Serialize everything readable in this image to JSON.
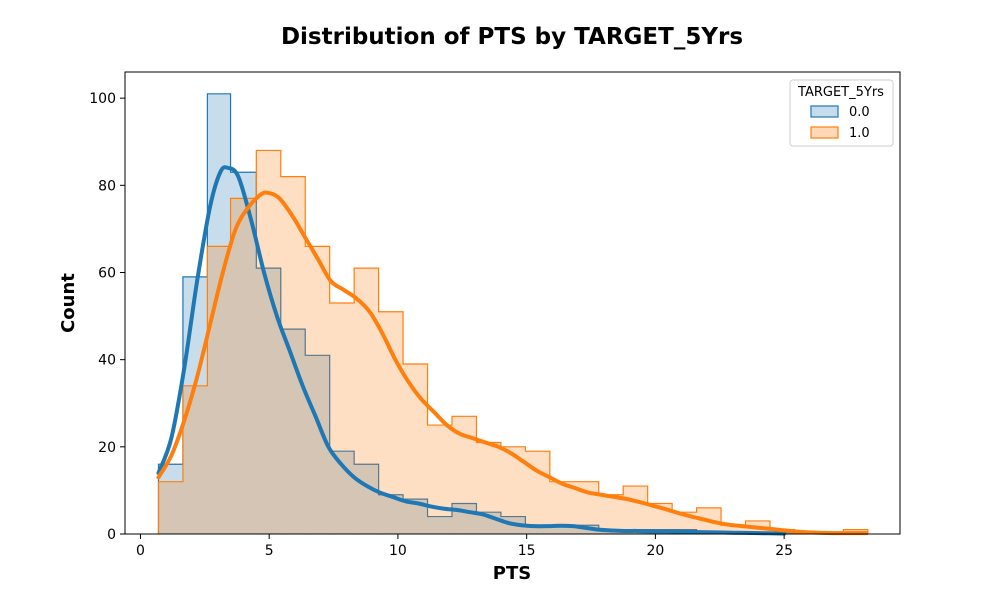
{
  "chart_data": {
    "type": "histogram",
    "title": "Distribution of PTS by TARGET_5Yrs",
    "xlabel": "PTS",
    "ylabel": "Count",
    "xlim": [
      -0.6,
      29.5
    ],
    "ylim": [
      0,
      106
    ],
    "xticks": [
      0,
      5,
      10,
      15,
      20,
      25
    ],
    "yticks": [
      0,
      20,
      40,
      60,
      80,
      100
    ],
    "grid": false,
    "legend": {
      "title": "TARGET_5Yrs",
      "placement": "top-right"
    },
    "bin_edges": [
      0.7,
      1.65,
      2.6,
      3.5,
      4.5,
      5.45,
      6.4,
      7.35,
      8.3,
      9.25,
      10.2,
      11.15,
      12.1,
      13.05,
      14.0,
      14.95,
      15.9,
      16.85,
      17.8,
      18.75,
      19.7,
      20.65,
      21.6,
      22.55,
      23.5,
      24.45,
      25.4,
      26.35,
      27.3,
      28.25
    ],
    "series": [
      {
        "name": "0.0",
        "color": "#1f77b4",
        "fill": "#c6dcec",
        "counts": [
          16,
          59,
          101,
          83,
          61,
          47,
          41,
          19,
          16,
          9,
          8,
          4,
          7,
          5,
          4,
          2,
          2,
          2,
          1,
          1,
          1,
          1,
          0.5,
          0.5,
          0.3,
          0.3,
          0.3,
          0.3,
          0.3
        ],
        "kde": [
          [
            0.7,
            14
          ],
          [
            1.2,
            22
          ],
          [
            1.7,
            38
          ],
          [
            2.2,
            58
          ],
          [
            2.7,
            75
          ],
          [
            3.1,
            83
          ],
          [
            3.4,
            84
          ],
          [
            3.8,
            82
          ],
          [
            4.3,
            72
          ],
          [
            4.8,
            60
          ],
          [
            5.3,
            50
          ],
          [
            5.8,
            42
          ],
          [
            6.3,
            34
          ],
          [
            6.8,
            27
          ],
          [
            7.3,
            20
          ],
          [
            7.8,
            16
          ],
          [
            8.3,
            13
          ],
          [
            8.8,
            11
          ],
          [
            9.3,
            9.5
          ],
          [
            9.8,
            8.5
          ],
          [
            10.3,
            7.5
          ],
          [
            10.8,
            7
          ],
          [
            11.3,
            6.3
          ],
          [
            11.8,
            5.8
          ],
          [
            12.3,
            5.5
          ],
          [
            12.8,
            5
          ],
          [
            13.3,
            4.5
          ],
          [
            13.8,
            3.5
          ],
          [
            14.3,
            2.5
          ],
          [
            14.8,
            2
          ],
          [
            15.3,
            1.8
          ],
          [
            15.8,
            1.8
          ],
          [
            16.3,
            1.9
          ],
          [
            16.8,
            1.8
          ],
          [
            17.3,
            1.4
          ],
          [
            17.8,
            1
          ],
          [
            18.3,
            0.8
          ],
          [
            18.8,
            0.7
          ],
          [
            19.3,
            0.7
          ],
          [
            19.8,
            0.6
          ],
          [
            20.5,
            0.6
          ],
          [
            21.2,
            0.5
          ],
          [
            22,
            0.4
          ],
          [
            23,
            0.3
          ],
          [
            24,
            0.2
          ],
          [
            25,
            0.1
          ]
        ]
      },
      {
        "name": "1.0",
        "color": "#ff7f0e",
        "fill": "#ffd9b8",
        "counts": [
          12,
          34,
          66,
          77,
          88,
          82,
          66,
          53,
          61,
          51,
          39,
          25,
          27,
          21,
          20,
          19,
          12,
          12,
          9,
          11,
          7,
          5,
          6,
          2,
          3,
          1,
          0.5,
          0.5,
          1
        ],
        "kde": [
          [
            0.7,
            13
          ],
          [
            1.2,
            18
          ],
          [
            1.7,
            26
          ],
          [
            2.2,
            36
          ],
          [
            2.7,
            48
          ],
          [
            3.2,
            60
          ],
          [
            3.7,
            70
          ],
          [
            4.2,
            75
          ],
          [
            4.7,
            78
          ],
          [
            5.0,
            78.2
          ],
          [
            5.4,
            77
          ],
          [
            5.9,
            73
          ],
          [
            6.4,
            68
          ],
          [
            6.9,
            63
          ],
          [
            7.4,
            58
          ],
          [
            7.9,
            56
          ],
          [
            8.4,
            54
          ],
          [
            8.9,
            51
          ],
          [
            9.4,
            46
          ],
          [
            9.9,
            40
          ],
          [
            10.4,
            35
          ],
          [
            10.9,
            31
          ],
          [
            11.4,
            28
          ],
          [
            11.9,
            25
          ],
          [
            12.4,
            23
          ],
          [
            12.9,
            22
          ],
          [
            13.4,
            21
          ],
          [
            13.9,
            20
          ],
          [
            14.4,
            18.5
          ],
          [
            14.9,
            16.5
          ],
          [
            15.4,
            14.5
          ],
          [
            15.9,
            13
          ],
          [
            16.4,
            11.5
          ],
          [
            16.9,
            10.5
          ],
          [
            17.4,
            9.5
          ],
          [
            17.9,
            9
          ],
          [
            18.4,
            8.5
          ],
          [
            18.9,
            8
          ],
          [
            19.4,
            7.3
          ],
          [
            19.9,
            6.5
          ],
          [
            20.4,
            5.7
          ],
          [
            20.9,
            4.8
          ],
          [
            21.4,
            4
          ],
          [
            21.9,
            3.3
          ],
          [
            22.4,
            2.6
          ],
          [
            22.9,
            2.1
          ],
          [
            23.4,
            1.8
          ],
          [
            23.9,
            1.5
          ],
          [
            24.4,
            1.2
          ],
          [
            24.9,
            0.9
          ],
          [
            25.4,
            0.6
          ],
          [
            25.9,
            0.4
          ],
          [
            26.4,
            0.3
          ],
          [
            26.9,
            0.2
          ],
          [
            27.4,
            0.2
          ],
          [
            28.2,
            0.2
          ]
        ]
      }
    ]
  }
}
